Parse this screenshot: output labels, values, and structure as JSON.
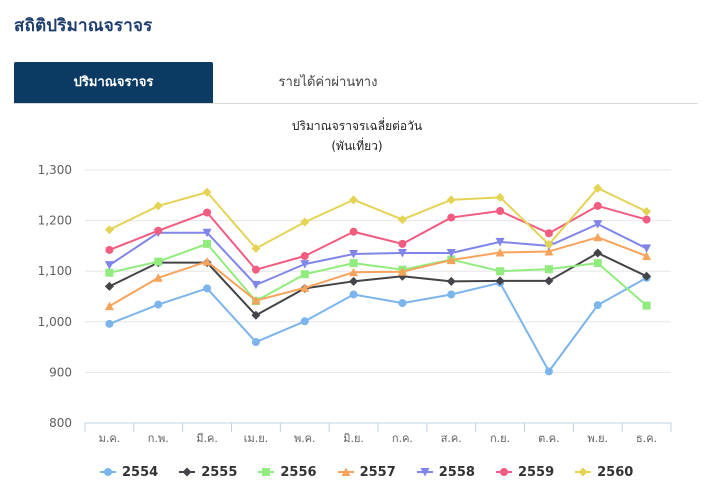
{
  "page": {
    "title": "สถิติปริมาณจราจร"
  },
  "tabs": [
    {
      "label": "ปริมาณจราจร",
      "active": true
    },
    {
      "label": "รายได้ค่าผ่านทาง",
      "active": false
    }
  ],
  "chart_data": {
    "type": "line",
    "title": "ปริมาณจราจรเฉลี่ยต่อวัน",
    "subtitle": "(พันเที่ยว)",
    "categories": [
      "ม.ค.",
      "ก.พ.",
      "มี.ค.",
      "เม.ย.",
      "พ.ค.",
      "มิ.ย.",
      "ก.ค.",
      "ส.ค.",
      "ก.ย.",
      "ต.ค.",
      "พ.ย.",
      "ธ.ค."
    ],
    "ylim": [
      800,
      1300
    ],
    "yticks": [
      800,
      900,
      1000,
      1100,
      1200,
      1300
    ],
    "ytick_labels": [
      "800",
      "900",
      "1,000",
      "1,100",
      "1,200",
      "1,300"
    ],
    "grid": true,
    "legend_position": "bottom",
    "series": [
      {
        "name": "2554",
        "color": "#7cb5ec",
        "marker": "circle",
        "values": [
          996,
          1034,
          1066,
          960,
          1001,
          1054,
          1037,
          1054,
          1077,
          902,
          1033,
          1087
        ]
      },
      {
        "name": "2555",
        "color": "#434348",
        "marker": "diamond",
        "values": [
          1070,
          1117,
          1117,
          1013,
          1066,
          1080,
          1090,
          1080,
          1081,
          1081,
          1136,
          1090
        ]
      },
      {
        "name": "2556",
        "color": "#90ed7d",
        "marker": "square",
        "values": [
          1097,
          1119,
          1154,
          1041,
          1094,
          1116,
          1103,
          1123,
          1100,
          1104,
          1116,
          1032
        ]
      },
      {
        "name": "2557",
        "color": "#f7a35c",
        "marker": "triangle",
        "values": [
          1031,
          1087,
          1119,
          1042,
          1067,
          1098,
          1099,
          1122,
          1137,
          1139,
          1167,
          1130
        ]
      },
      {
        "name": "2558",
        "color": "#8085e9",
        "marker": "triangle-down",
        "values": [
          1112,
          1176,
          1176,
          1073,
          1114,
          1134,
          1136,
          1136,
          1158,
          1150,
          1193,
          1145
        ]
      },
      {
        "name": "2559",
        "color": "#f15c80",
        "marker": "circle",
        "values": [
          1142,
          1180,
          1216,
          1103,
          1130,
          1178,
          1154,
          1206,
          1219,
          1175,
          1229,
          1202
        ]
      },
      {
        "name": "2560",
        "color": "#e4d354",
        "marker": "diamond",
        "values": [
          1182,
          1229,
          1256,
          1145,
          1197,
          1241,
          1202,
          1241,
          1246,
          1153,
          1264,
          1218
        ]
      }
    ]
  }
}
